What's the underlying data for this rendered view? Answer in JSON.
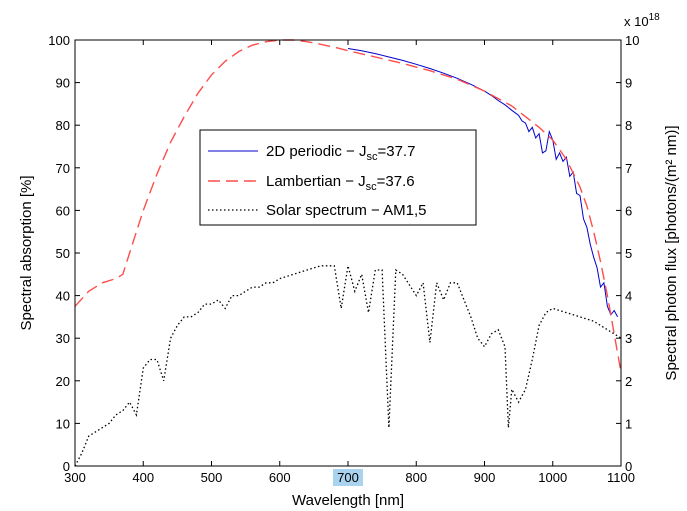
{
  "chart_data": {
    "type": "line",
    "xlabel": "Wavelength [nm]",
    "ylabel_left": "Spectral absorption [%]",
    "ylabel_right": "Spectral photon flux [photons/(m² nm)]",
    "right_exponent_label": "x 10",
    "right_exponent_power": "18",
    "xlim": [
      300,
      1100
    ],
    "ylim_left": [
      0,
      100
    ],
    "ylim_right": [
      0,
      10
    ],
    "x_ticks": [
      300,
      400,
      500,
      600,
      700,
      800,
      900,
      1000,
      1100
    ],
    "y_ticks_left": [
      0,
      10,
      20,
      30,
      40,
      50,
      60,
      70,
      80,
      90,
      100
    ],
    "y_ticks_right": [
      0,
      1,
      2,
      3,
      4,
      5,
      6,
      7,
      8,
      9,
      10
    ],
    "highlighted_x_tick": 700,
    "highlight_color": "#a9d3ee",
    "grid": false,
    "legend_position": "center-left",
    "series": [
      {
        "name": "2D periodic",
        "legend_label": "2D periodic − J",
        "legend_sub": "sc",
        "legend_suffix": "=37.7",
        "axis": "left",
        "style": "solid",
        "color": "#0000cc",
        "x": [
          700,
          720,
          740,
          760,
          780,
          800,
          820,
          840,
          860,
          880,
          900,
          910,
          920,
          930,
          940,
          950,
          955,
          960,
          965,
          970,
          975,
          980,
          985,
          990,
          995,
          1000,
          1005,
          1010,
          1015,
          1020,
          1025,
          1030,
          1035,
          1040,
          1045,
          1050,
          1055,
          1060,
          1065,
          1070,
          1075,
          1080,
          1085,
          1090,
          1095
        ],
        "y": [
          98.0,
          97.5,
          96.8,
          96.0,
          95.2,
          94.3,
          93.3,
          92.2,
          91.0,
          89.6,
          88.0,
          87.0,
          85.8,
          84.8,
          83.5,
          82.3,
          81.0,
          80.5,
          78.5,
          79.5,
          77.0,
          78.0,
          73.5,
          74.0,
          78.5,
          76.5,
          72.0,
          73.5,
          71.5,
          72.5,
          68.0,
          69.0,
          64.0,
          63.5,
          58.0,
          56.0,
          52.0,
          49.0,
          46.5,
          42.0,
          43.0,
          37.5,
          35.5,
          36.5,
          35.0
        ]
      },
      {
        "name": "Lambertian",
        "legend_label": "Lambertian − J",
        "legend_sub": "sc",
        "legend_suffix": "=37.6",
        "axis": "left",
        "style": "dashed",
        "color": "#ff4d4d",
        "x": [
          300,
          320,
          340,
          360,
          370,
          380,
          400,
          420,
          440,
          460,
          480,
          500,
          520,
          540,
          560,
          580,
          600,
          620,
          640,
          660,
          680,
          700,
          740,
          780,
          820,
          860,
          900,
          940,
          980,
          1000,
          1020,
          1040,
          1050,
          1060,
          1070,
          1080,
          1090,
          1100
        ],
        "y": [
          37.5,
          41.0,
          43.0,
          44.0,
          45.0,
          50.0,
          60.0,
          68.5,
          76.0,
          82.0,
          87.5,
          91.8,
          95.0,
          97.3,
          98.8,
          99.6,
          100.0,
          100.0,
          99.6,
          99.0,
          98.3,
          97.5,
          96.0,
          94.5,
          92.8,
          90.8,
          88.0,
          84.5,
          79.5,
          76.5,
          72.0,
          65.5,
          61.0,
          55.0,
          48.0,
          40.0,
          31.0,
          22.0
        ]
      },
      {
        "name": "Solar spectrum",
        "legend_label": "Solar spectrum − AM1,5",
        "axis": "right",
        "style": "dotted",
        "color": "#000000",
        "x": [
          300,
          310,
          320,
          330,
          340,
          350,
          360,
          370,
          380,
          390,
          400,
          410,
          420,
          430,
          440,
          450,
          460,
          470,
          480,
          490,
          500,
          510,
          520,
          530,
          540,
          550,
          560,
          570,
          580,
          590,
          600,
          620,
          640,
          660,
          680,
          690,
          700,
          710,
          720,
          730,
          740,
          750,
          760,
          770,
          780,
          800,
          810,
          820,
          830,
          840,
          850,
          860,
          870,
          880,
          890,
          900,
          910,
          920,
          930,
          935,
          940,
          950,
          960,
          970,
          980,
          990,
          1000,
          1020,
          1040,
          1060,
          1080,
          1100
        ],
        "y": [
          0.0,
          0.3,
          0.7,
          0.8,
          0.9,
          1.0,
          1.2,
          1.3,
          1.5,
          1.2,
          2.3,
          2.5,
          2.5,
          2.0,
          3.0,
          3.3,
          3.5,
          3.5,
          3.6,
          3.8,
          3.8,
          3.9,
          3.7,
          4.0,
          4.0,
          4.1,
          4.2,
          4.2,
          4.3,
          4.3,
          4.4,
          4.5,
          4.6,
          4.7,
          4.7,
          3.7,
          4.7,
          4.1,
          4.5,
          3.6,
          4.6,
          4.6,
          0.9,
          4.6,
          4.5,
          4.0,
          4.3,
          2.9,
          4.3,
          3.9,
          4.3,
          4.3,
          3.9,
          3.5,
          3.0,
          2.8,
          3.1,
          3.2,
          2.8,
          0.9,
          1.8,
          1.5,
          1.8,
          2.5,
          3.3,
          3.6,
          3.7,
          3.6,
          3.5,
          3.4,
          3.2,
          3.0
        ]
      }
    ]
  }
}
